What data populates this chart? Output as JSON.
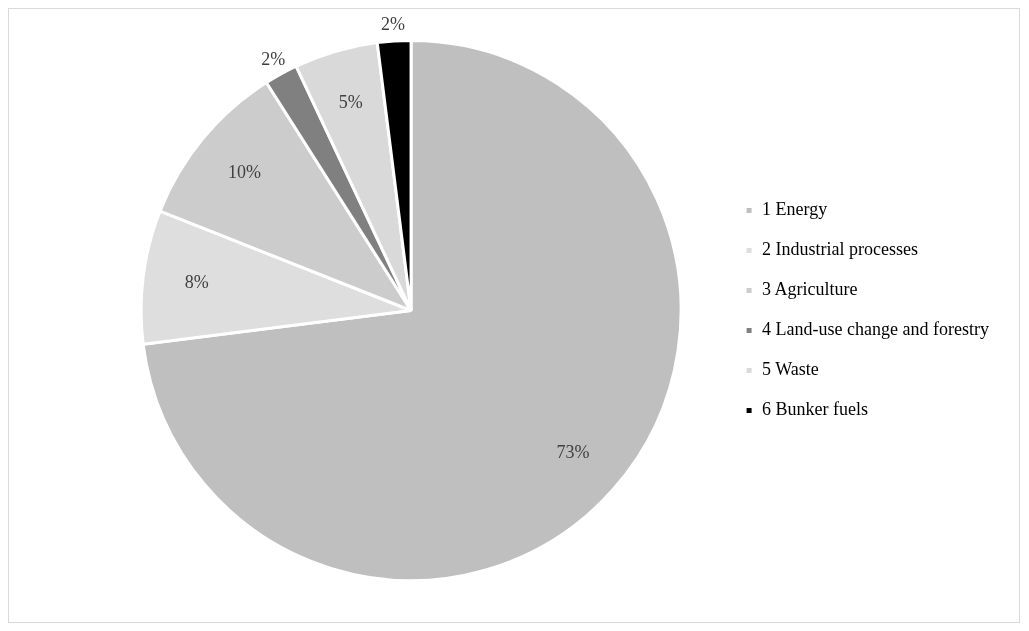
{
  "chart_data": {
    "type": "pie",
    "categories": [
      "1 Energy",
      "2 Industrial processes",
      "3 Agriculture",
      "4 Land-use change and forestry",
      "5 Waste",
      "6 Bunker fuels"
    ],
    "values": [
      73,
      8,
      10,
      2,
      5,
      2
    ],
    "colors": [
      "#bfbfbf",
      "#dedede",
      "#cccccc",
      "#808080",
      "#d9d9d9",
      "#000000"
    ],
    "value_labels": [
      "73%",
      "8%",
      "10%",
      "2%",
      "5%",
      "2%"
    ],
    "legend": "right"
  }
}
